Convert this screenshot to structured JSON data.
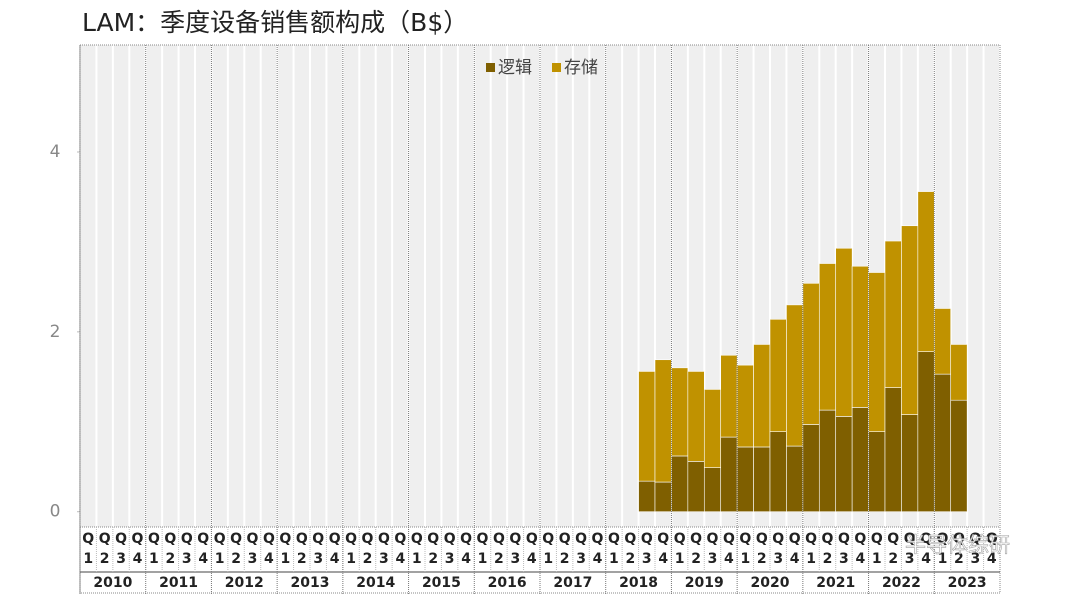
{
  "chart_data": {
    "type": "stacked_bar",
    "title": "LAM：季度设备销售额构成（B$）",
    "categories": [
      "Q1",
      "Q2",
      "Q3",
      "Q4",
      "Q1",
      "Q2",
      "Q3",
      "Q4",
      "Q1",
      "Q2",
      "Q3",
      "Q4",
      "Q1",
      "Q2",
      "Q3",
      "Q4",
      "Q1",
      "Q2",
      "Q3",
      "Q4",
      "Q1",
      "Q2",
      "Q3",
      "Q4",
      "Q1",
      "Q2",
      "Q3",
      "Q4",
      "Q1",
      "Q2",
      "Q3",
      "Q4",
      "Q1",
      "Q2",
      "Q3",
      "Q4",
      "Q1",
      "Q2",
      "Q3",
      "Q4",
      "Q1",
      "Q2",
      "Q3",
      "Q4",
      "Q1",
      "Q2",
      "Q3",
      "Q4",
      "Q1",
      "Q2",
      "Q3",
      "Q4",
      "Q1",
      "Q2",
      "Q3",
      "Q4"
    ],
    "years": [
      "2010",
      "2011",
      "2012",
      "2013",
      "2014",
      "2015",
      "2016",
      "2017",
      "2018",
      "2019",
      "2020",
      "2021",
      "2022",
      "2023"
    ],
    "series": [
      {
        "name": "逻辑",
        "color": "#7f5f00",
        "values": [
          null,
          null,
          null,
          null,
          null,
          null,
          null,
          null,
          null,
          null,
          null,
          null,
          null,
          null,
          null,
          null,
          null,
          null,
          null,
          null,
          null,
          null,
          null,
          null,
          null,
          null,
          null,
          null,
          null,
          null,
          null,
          null,
          null,
          null,
          0.34,
          0.33,
          0.62,
          0.56,
          0.49,
          0.83,
          0.72,
          0.72,
          0.89,
          0.73,
          0.97,
          1.13,
          1.06,
          1.16,
          0.89,
          1.38,
          1.08,
          1.78,
          1.53,
          1.24,
          null,
          null
        ]
      },
      {
        "name": "存储",
        "color": "#c09200",
        "values": [
          null,
          null,
          null,
          null,
          null,
          null,
          null,
          null,
          null,
          null,
          null,
          null,
          null,
          null,
          null,
          null,
          null,
          null,
          null,
          null,
          null,
          null,
          null,
          null,
          null,
          null,
          null,
          null,
          null,
          null,
          null,
          null,
          null,
          null,
          1.22,
          1.36,
          0.98,
          1.0,
          0.87,
          0.91,
          0.91,
          1.14,
          1.25,
          1.57,
          1.57,
          1.63,
          1.87,
          1.57,
          1.77,
          1.63,
          2.1,
          1.78,
          0.73,
          0.62,
          null,
          null
        ]
      }
    ],
    "ylim": [
      -0.17,
      5.19
    ],
    "yticks": [
      0,
      2,
      4
    ],
    "legend": "top",
    "watermark": "半导体综研"
  }
}
